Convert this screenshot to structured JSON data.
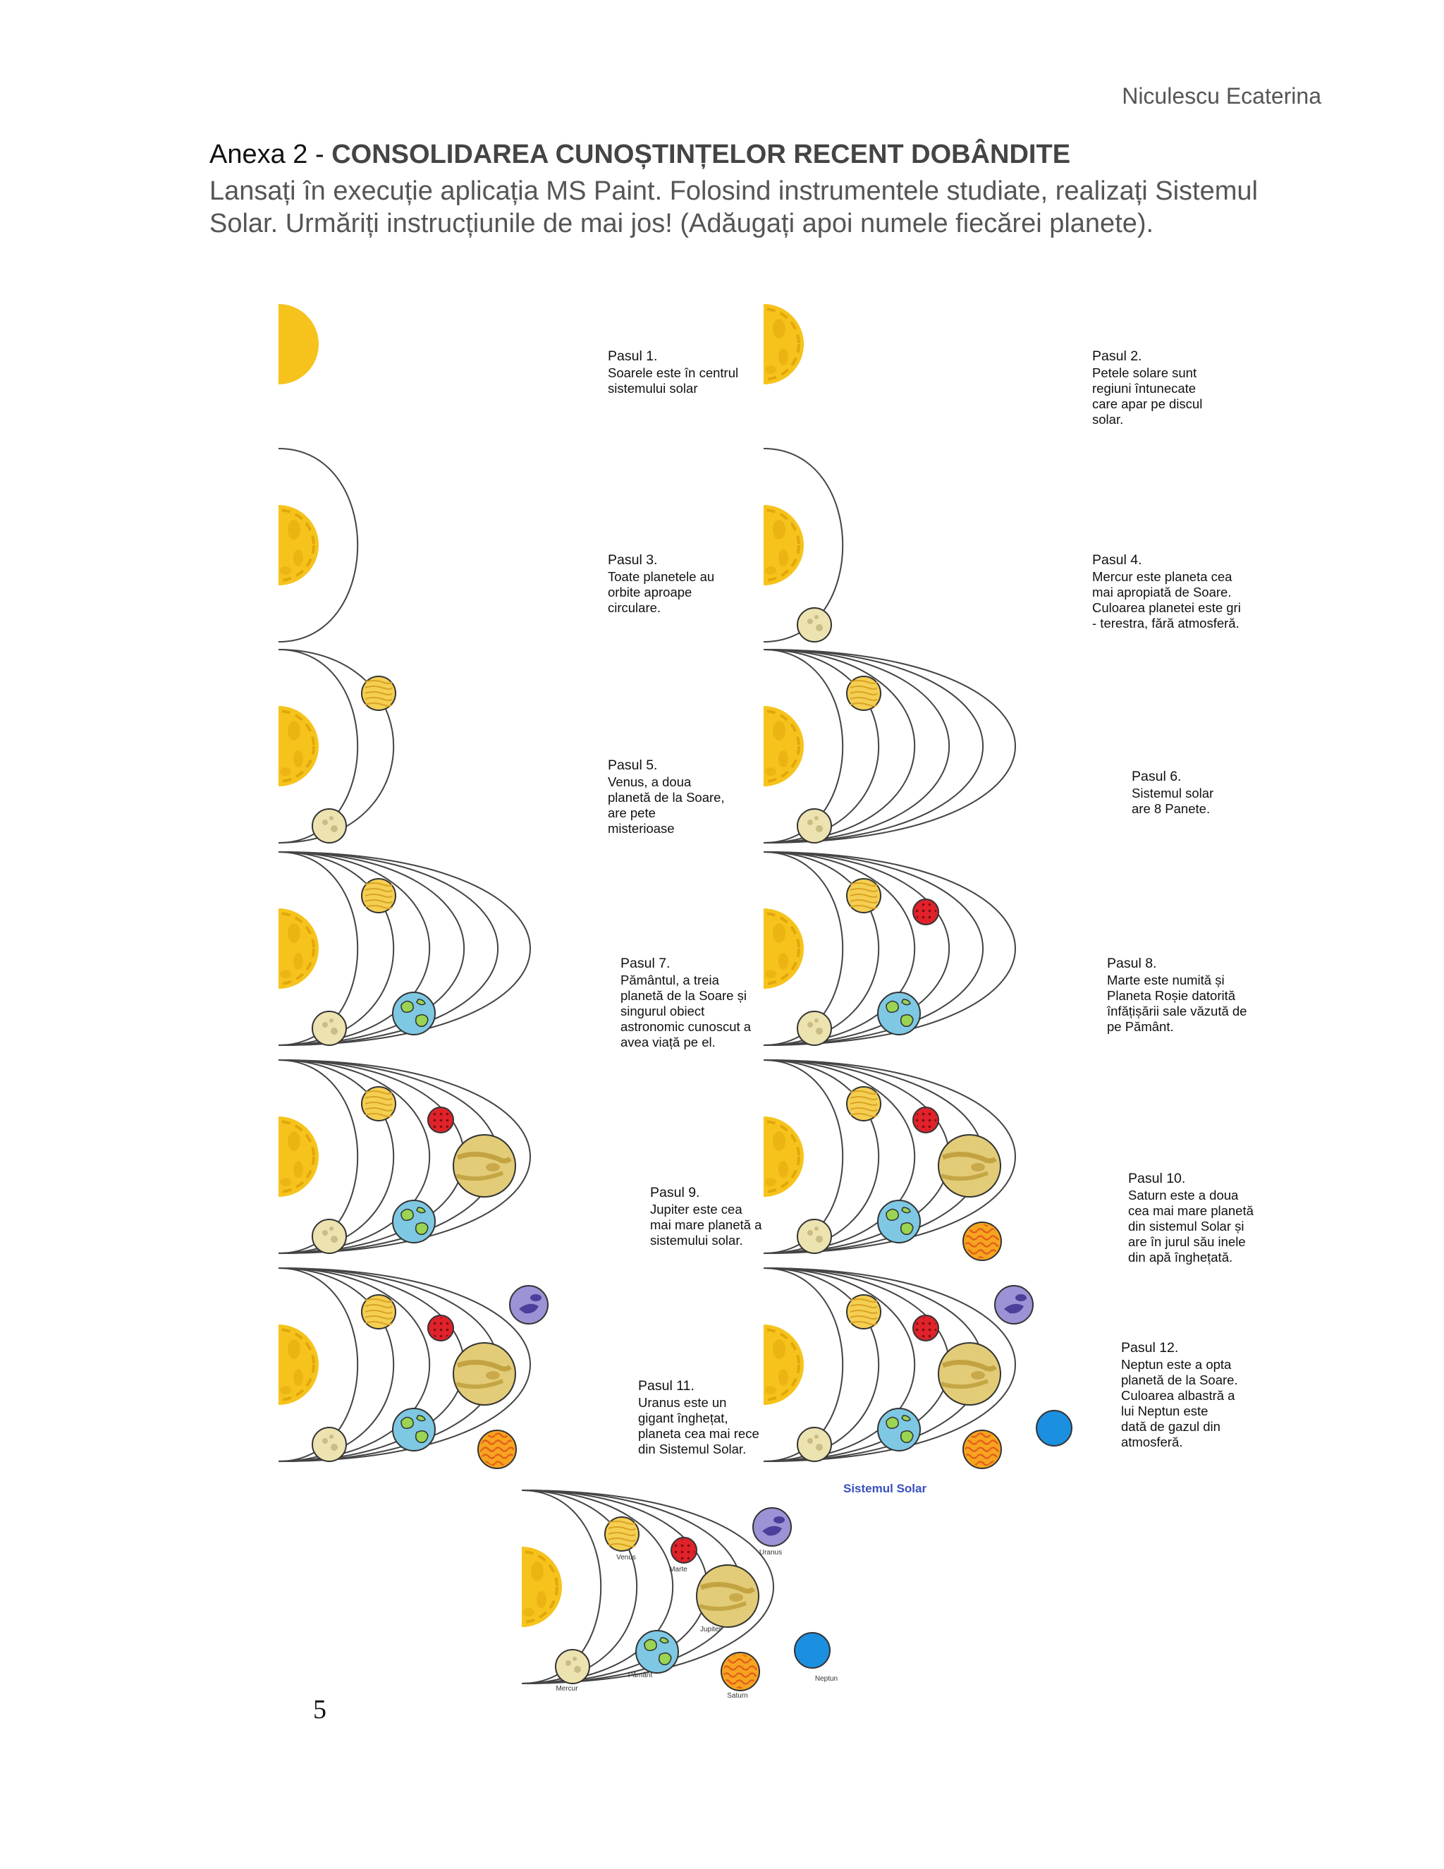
{
  "header": {
    "author": "Niculescu Ecaterina",
    "title_prefix": "Anexa 2 - ",
    "title_bold": "CONSOLIDAREA CUNOȘTINȚELOR RECENT DOBÂNDITE",
    "instructions": "Lansați în execuție aplicația MS Paint. Folosind instrumentele studiate, realizați Sistemul Solar. Urmăriți instrucțiunile de mai jos! (Adăugați apoi numele fiecărei planete)."
  },
  "steps": [
    {
      "title": "Pasul 1.",
      "lines": [
        "Soarele este în centrul",
        "sistemului solar"
      ]
    },
    {
      "title": "Pasul 2.",
      "lines": [
        "Petele solare sunt",
        "regiuni întunecate",
        "care apar pe discul",
        "solar."
      ]
    },
    {
      "title": "Pasul 3.",
      "lines": [
        "Toate planetele au",
        "orbite aproape",
        "circulare."
      ]
    },
    {
      "title": "Pasul  4.",
      "lines": [
        "Mercur este planeta cea",
        "mai apropiată de Soare.",
        "Culoarea planetei este gri",
        "- terestra, fără atmosferă."
      ]
    },
    {
      "title": "Pasul 5.",
      "lines": [
        "Venus, a doua",
        "planetă de la Soare,",
        "are pete",
        "misterioase"
      ]
    },
    {
      "title": "Pasul 6.",
      "lines": [
        "Sistemul solar",
        "are 8 Panete."
      ]
    },
    {
      "title": "Pasul 7.",
      "lines": [
        "Pământul, a treia",
        "planetă de la Soare și",
        "singurul obiect",
        "astronomic cunoscut a",
        "avea viață pe el."
      ]
    },
    {
      "title": "Pasul 8.",
      "lines": [
        "Marte este numită și",
        "Planeta Roșie datorită",
        "înfățișării sale văzută de",
        "pe Pământ."
      ]
    },
    {
      "title": "Pasul 9.",
      "lines": [
        "Jupiter este cea",
        "mai mare planetă a",
        "sistemului solar."
      ]
    },
    {
      "title": "Pasul 10.",
      "lines": [
        "Saturn este a doua",
        "cea mai mare planetă",
        "din sistemul Solar și",
        "are în jurul său inele",
        "din apă înghețată."
      ]
    },
    {
      "title": "Pasul 11.",
      "lines": [
        "Uranus este un",
        "gigant înghețat,",
        "planeta cea mai rece",
        "din Sistemul Solar."
      ]
    },
    {
      "title": "Pasul 12.",
      "lines": [
        "Neptun este a opta",
        "planetă de la Soare.",
        "Culoarea albastră a",
        "lui Neptun este",
        "dată de gazul din",
        "atmosferă."
      ]
    }
  ],
  "final": {
    "title": "Sistemul Solar",
    "labels": {
      "venus": "Venus",
      "marte": "Marte",
      "uranus": "Uranus",
      "jupiter": "Jupiter",
      "pamant": "Pământ",
      "mercur": "Mercur",
      "saturn": "Saturn",
      "neptun": "Neptun"
    }
  },
  "page_number": "5",
  "colors": {
    "sun": "#f6c31c",
    "sun_dark": "#e2a70b",
    "mercury": "#ede3b0",
    "venus": "#f5cf52",
    "earth_ocean": "#7ec8e3",
    "earth_land": "#9ad452",
    "mars": "#e0222a",
    "jupiter": "#e3cc78",
    "saturn": "#f7a41f",
    "uranus": "#9b93d6",
    "neptune": "#1b8fe0",
    "orbit": "#444444"
  }
}
